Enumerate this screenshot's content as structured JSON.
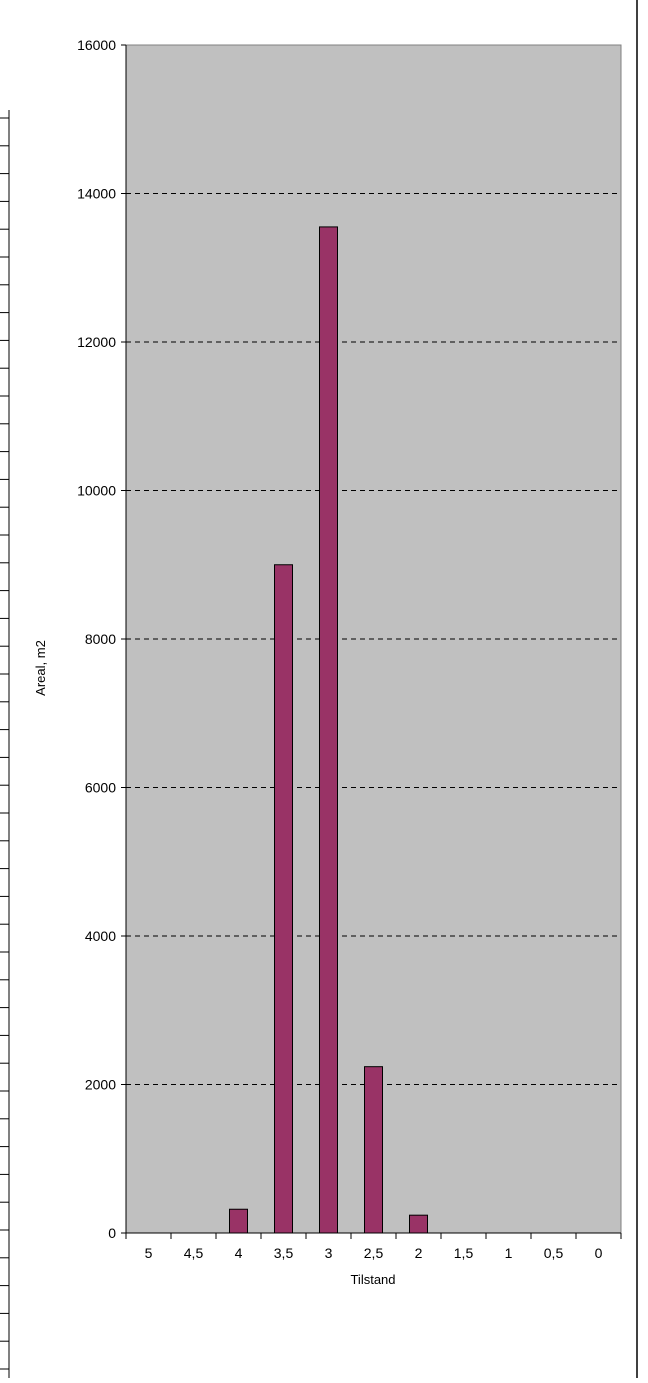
{
  "chart_data": {
    "type": "bar",
    "title": "",
    "xlabel": "Tilstand",
    "ylabel": "Areal, m2",
    "categories": [
      "5",
      "4,5",
      "4",
      "3,5",
      "3",
      "2,5",
      "2",
      "1,5",
      "1",
      "0,5",
      "0"
    ],
    "values": [
      0,
      0,
      320,
      9000,
      13550,
      2240,
      240,
      0,
      0,
      0,
      0
    ],
    "yticks": [
      "0",
      "2000",
      "4000",
      "6000",
      "8000",
      "10000",
      "12000",
      "14000",
      "16000"
    ],
    "ylim": [
      0,
      16000
    ],
    "grid": true,
    "legend": "none"
  },
  "colors": {
    "bar_fill": "#993366",
    "plot_background": "#c0c0c0",
    "gridline": "#000000"
  }
}
